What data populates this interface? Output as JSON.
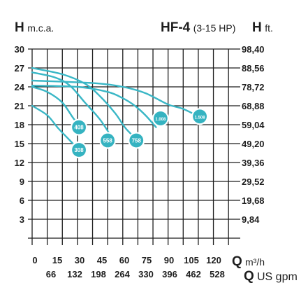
{
  "header": {
    "left_symbol": "H",
    "left_unit": "m.c.a.",
    "model": "HF-4",
    "power_range": "(3-15 HP)",
    "right_symbol": "H",
    "right_unit": "ft."
  },
  "colors": {
    "curve": "#3ab7c6",
    "badge": "#35b3c1",
    "badge_ring": "#ffffff",
    "grid": "#1e1e1e",
    "text": "#1e1e1e"
  },
  "chart_data": {
    "type": "line",
    "title": "HF-4 (3-15 HP)",
    "ylabel": "H m.c.a.",
    "ylabel_right": "H ft.",
    "xlabel": "Q m³/h",
    "xlabel_secondary": "Q US gpm",
    "x_unit_top": "m³/h",
    "x_unit_bottom": "US gpm",
    "xlim": [
      0,
      135
    ],
    "ylim": [
      0,
      30
    ],
    "grid": true,
    "y_ticks_left": [
      30,
      27,
      24,
      21,
      18,
      15,
      12,
      9,
      6,
      3
    ],
    "y_ticks_right": [
      "98,40",
      "88,56",
      "78,72",
      "68,88",
      "59,04",
      "49,20",
      "39,36",
      "29,52",
      "19,68",
      "9,84"
    ],
    "x_ticks_top": [
      0,
      15,
      30,
      45,
      60,
      75,
      90,
      105,
      120
    ],
    "x_ticks_bottom": [
      66,
      132,
      198,
      264,
      330,
      396,
      462,
      528
    ],
    "series": [
      {
        "name": "308",
        "x": [
          0,
          10,
          17,
          25,
          30
        ],
        "y": [
          21,
          19.5,
          17.5,
          15.5,
          14.2
        ]
      },
      {
        "name": "408",
        "x": [
          0,
          10,
          20,
          28,
          34
        ],
        "y": [
          24,
          23.2,
          21.5,
          18.8,
          17.5
        ]
      },
      {
        "name": "558",
        "x": [
          0,
          15,
          25,
          35,
          45,
          54
        ],
        "y": [
          26.3,
          25.5,
          24.2,
          21.5,
          18.8,
          15.5
        ]
      },
      {
        "name": "758",
        "x": [
          0,
          20,
          35,
          45,
          55,
          62,
          70
        ],
        "y": [
          27,
          26,
          24.5,
          22.5,
          19.8,
          17.4,
          15.5
        ]
      },
      {
        "name": "1.008",
        "x": [
          0,
          30,
          50,
          60,
          68,
          75,
          82
        ],
        "y": [
          24.2,
          24,
          23.2,
          22.2,
          21,
          19.5,
          17.6
        ]
      },
      {
        "name": "1.508",
        "x": [
          0,
          40,
          60,
          75,
          90,
          100,
          111
        ],
        "y": [
          25,
          24.6,
          24,
          23,
          21.2,
          20.5,
          19.2
        ]
      }
    ],
    "badges": [
      {
        "label": "408",
        "x": 31,
        "y": 17.6
      },
      {
        "label": "308",
        "x": 31,
        "y": 14.0
      },
      {
        "label": "558",
        "x": 50,
        "y": 15.5
      },
      {
        "label": "758",
        "x": 69,
        "y": 15.5
      },
      {
        "label": "1.008",
        "x": 85,
        "y": 19.0
      },
      {
        "label": "1.508",
        "x": 111,
        "y": 19.3
      }
    ]
  }
}
